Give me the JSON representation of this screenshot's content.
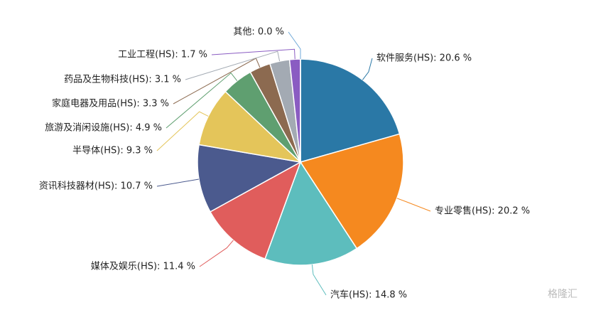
{
  "chart_data": {
    "type": "pie",
    "values": [
      20.6,
      20.2,
      14.8,
      11.4,
      10.7,
      9.3,
      4.9,
      3.3,
      3.1,
      1.7,
      0.0
    ],
    "value_labels": [
      "软件服务(HS): 20.6 %",
      "专业零售(HS): 20.2 %",
      "汽车(HS): 14.8 %",
      "媒体及娱乐(HS): 11.4 %",
      "资讯科技器材(HS): 10.7 %",
      "半导体(HS): 9.3 %",
      "旅游及消闲设施(HS): 4.9 %",
      "家庭电器及用品(HS): 3.3 %",
      "药品及生物科技(HS): 3.1 %",
      "工业工程(HS): 1.7 %",
      "其他: 0.0 %"
    ],
    "colors": [
      "#2a78a6",
      "#f5891f",
      "#5dbdbd",
      "#e05d5c",
      "#4b5a8e",
      "#e4c55a",
      "#5f9f70",
      "#8c6a50",
      "#a3aab3",
      "#8a5cc2",
      "#6fa8d8"
    ],
    "watermark": "格隆汇"
  }
}
